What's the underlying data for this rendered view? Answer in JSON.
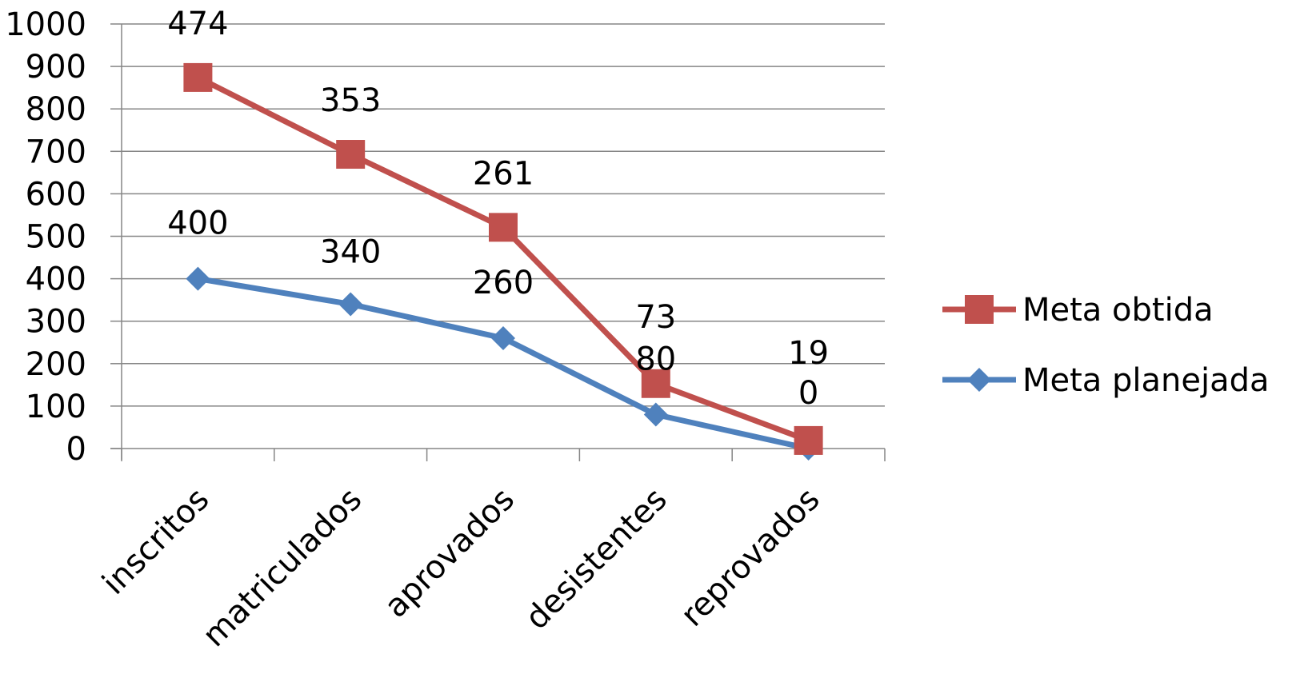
{
  "chart_data": {
    "type": "line",
    "title": "",
    "xlabel": "",
    "ylabel": "",
    "categories": [
      "inscritos",
      "matriculados",
      "aprovados",
      "desistentes",
      "reprovados"
    ],
    "ylim": [
      0,
      1000
    ],
    "yticks": [
      0,
      100,
      200,
      300,
      400,
      500,
      600,
      700,
      800,
      900,
      1000
    ],
    "grid": true,
    "legend_position": "right",
    "series": [
      {
        "name": "Meta obtida",
        "color": "#C0504D",
        "marker": "square",
        "values": [
          874,
          693,
          521,
          153,
          19
        ],
        "labels": [
          "474",
          "353",
          "261",
          "73",
          "19"
        ]
      },
      {
        "name": "Meta planejada",
        "color": "#4F81BD",
        "marker": "diamond",
        "values": [
          400,
          340,
          260,
          80,
          0
        ],
        "labels": [
          "400",
          "340",
          "260",
          "80",
          "0"
        ]
      }
    ]
  }
}
